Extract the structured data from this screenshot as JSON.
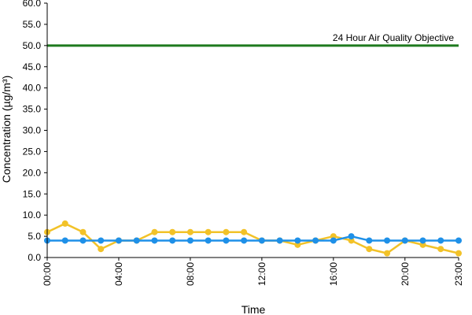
{
  "chart_data": {
    "type": "line",
    "xlabel": "Time",
    "ylabel": "Concentration (µg/m³)",
    "ylim": [
      0,
      60
    ],
    "y_ticks": [
      "0.0",
      "5.0",
      "10.0",
      "15.0",
      "20.0",
      "25.0",
      "30.0",
      "35.0",
      "40.0",
      "45.0",
      "50.0",
      "55.0",
      "60.0"
    ],
    "x": [
      0,
      1,
      2,
      3,
      4,
      5,
      6,
      7,
      8,
      9,
      10,
      11,
      12,
      13,
      14,
      15,
      16,
      17,
      18,
      19,
      20,
      21,
      22,
      23
    ],
    "x_tick_values": [
      0,
      4,
      8,
      12,
      16,
      20,
      23
    ],
    "x_tick_labels": [
      "00:00",
      "04:00",
      "08:00",
      "12:00",
      "16:00",
      "20:00",
      "23:00"
    ],
    "grid": false,
    "series": [
      {
        "color": "#f2c228",
        "values": [
          6,
          8,
          6,
          2,
          4,
          4,
          6,
          6,
          6,
          6,
          6,
          6,
          4,
          4,
          3,
          4,
          5,
          4,
          2,
          1,
          4,
          3,
          2,
          1
        ]
      },
      {
        "color": "#1e90e8",
        "values": [
          4,
          4,
          4,
          4,
          4,
          4,
          4,
          4,
          4,
          4,
          4,
          4,
          4,
          4,
          4,
          4,
          4,
          5,
          4,
          4,
          4,
          4,
          4,
          4
        ]
      }
    ],
    "annotations": [
      {
        "label": "24 Hour Air Quality Objective",
        "value": 50,
        "color": "#1e7a1e"
      }
    ]
  }
}
